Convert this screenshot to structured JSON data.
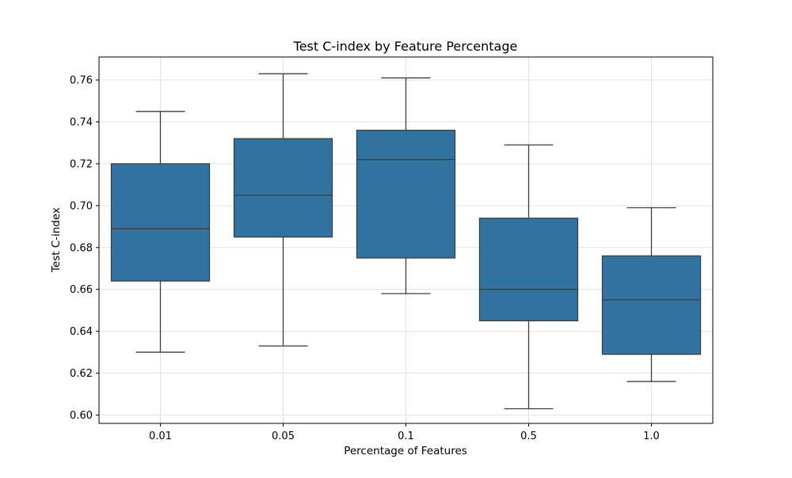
{
  "chart_data": {
    "type": "box",
    "title": "Test C-index by Feature Percentage",
    "xlabel": "Percentage of Features",
    "ylabel": "Test C-index",
    "categories": [
      "0.01",
      "0.05",
      "0.1",
      "0.5",
      "1.0"
    ],
    "ylim": [
      0.596,
      0.771
    ],
    "yticks": [
      0.6,
      0.62,
      0.64,
      0.66,
      0.68,
      0.7,
      0.72,
      0.74,
      0.76
    ],
    "ytick_labels": [
      "0.60",
      "0.62",
      "0.64",
      "0.66",
      "0.68",
      "0.70",
      "0.72",
      "0.74",
      "0.76"
    ],
    "grid": true,
    "box_color": "#3274a1",
    "line_color": "#3d3d3d",
    "boxes": [
      {
        "category": "0.01",
        "min": 0.63,
        "q1": 0.664,
        "median": 0.689,
        "q3": 0.72,
        "max": 0.745
      },
      {
        "category": "0.05",
        "min": 0.633,
        "q1": 0.685,
        "median": 0.705,
        "q3": 0.732,
        "max": 0.763
      },
      {
        "category": "0.1",
        "min": 0.658,
        "q1": 0.675,
        "median": 0.722,
        "q3": 0.736,
        "max": 0.761
      },
      {
        "category": "0.5",
        "min": 0.603,
        "q1": 0.645,
        "median": 0.66,
        "q3": 0.694,
        "max": 0.729
      },
      {
        "category": "1.0",
        "min": 0.616,
        "q1": 0.629,
        "median": 0.655,
        "q3": 0.676,
        "max": 0.699
      }
    ]
  }
}
